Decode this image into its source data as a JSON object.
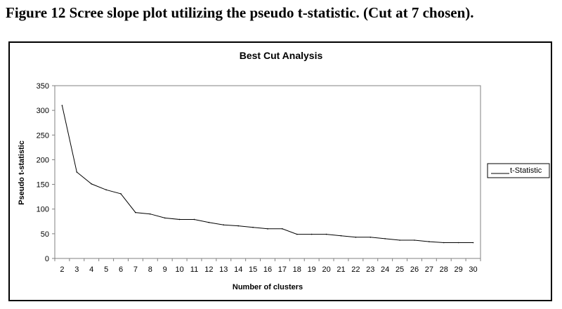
{
  "caption": "Figure 12 Scree slope plot utilizing the pseudo t-statistic. (Cut at 7 chosen).",
  "chart_data": {
    "type": "line",
    "title": "Best Cut Analysis",
    "xlabel": "Number of clusters",
    "ylabel": "Pseudo t-statistic",
    "x": [
      2,
      3,
      4,
      5,
      6,
      7,
      8,
      9,
      10,
      11,
      12,
      13,
      14,
      15,
      16,
      17,
      18,
      19,
      20,
      21,
      22,
      23,
      24,
      25,
      26,
      27,
      28,
      29,
      30
    ],
    "series": [
      {
        "name": "t-Statistic",
        "values": [
          310,
          175,
          151,
          139,
          131,
          93,
          90,
          82,
          79,
          79,
          73,
          68,
          66,
          63,
          60,
          60,
          49,
          49,
          49,
          46,
          43,
          43,
          40,
          37,
          37,
          34,
          32,
          32,
          32
        ]
      }
    ],
    "ylim": [
      0,
      350
    ],
    "yticks": [
      0,
      50,
      100,
      150,
      200,
      250,
      300,
      350
    ],
    "grid": false,
    "legend": "right",
    "colors": {
      "line": "#000000",
      "axis": "#808080",
      "frame": "#000000"
    }
  }
}
